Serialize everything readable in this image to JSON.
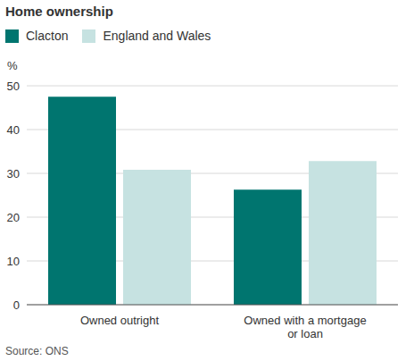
{
  "chart_data": {
    "type": "bar",
    "title": "Home ownership",
    "y_label": "%",
    "source": "Source: ONS",
    "categories": [
      "Owned outright",
      "Owned with a mortgage or loan"
    ],
    "series": [
      {
        "name": "Clacton",
        "color": "#00756f",
        "values": [
          47.5,
          26.3
        ]
      },
      {
        "name": "England and Wales",
        "color": "#c6e2e1",
        "values": [
          30.8,
          32.8
        ]
      }
    ],
    "ylim": [
      0,
      50
    ],
    "yticks": [
      0,
      10,
      20,
      30,
      40,
      50
    ],
    "grid": true,
    "legend": "top left"
  }
}
